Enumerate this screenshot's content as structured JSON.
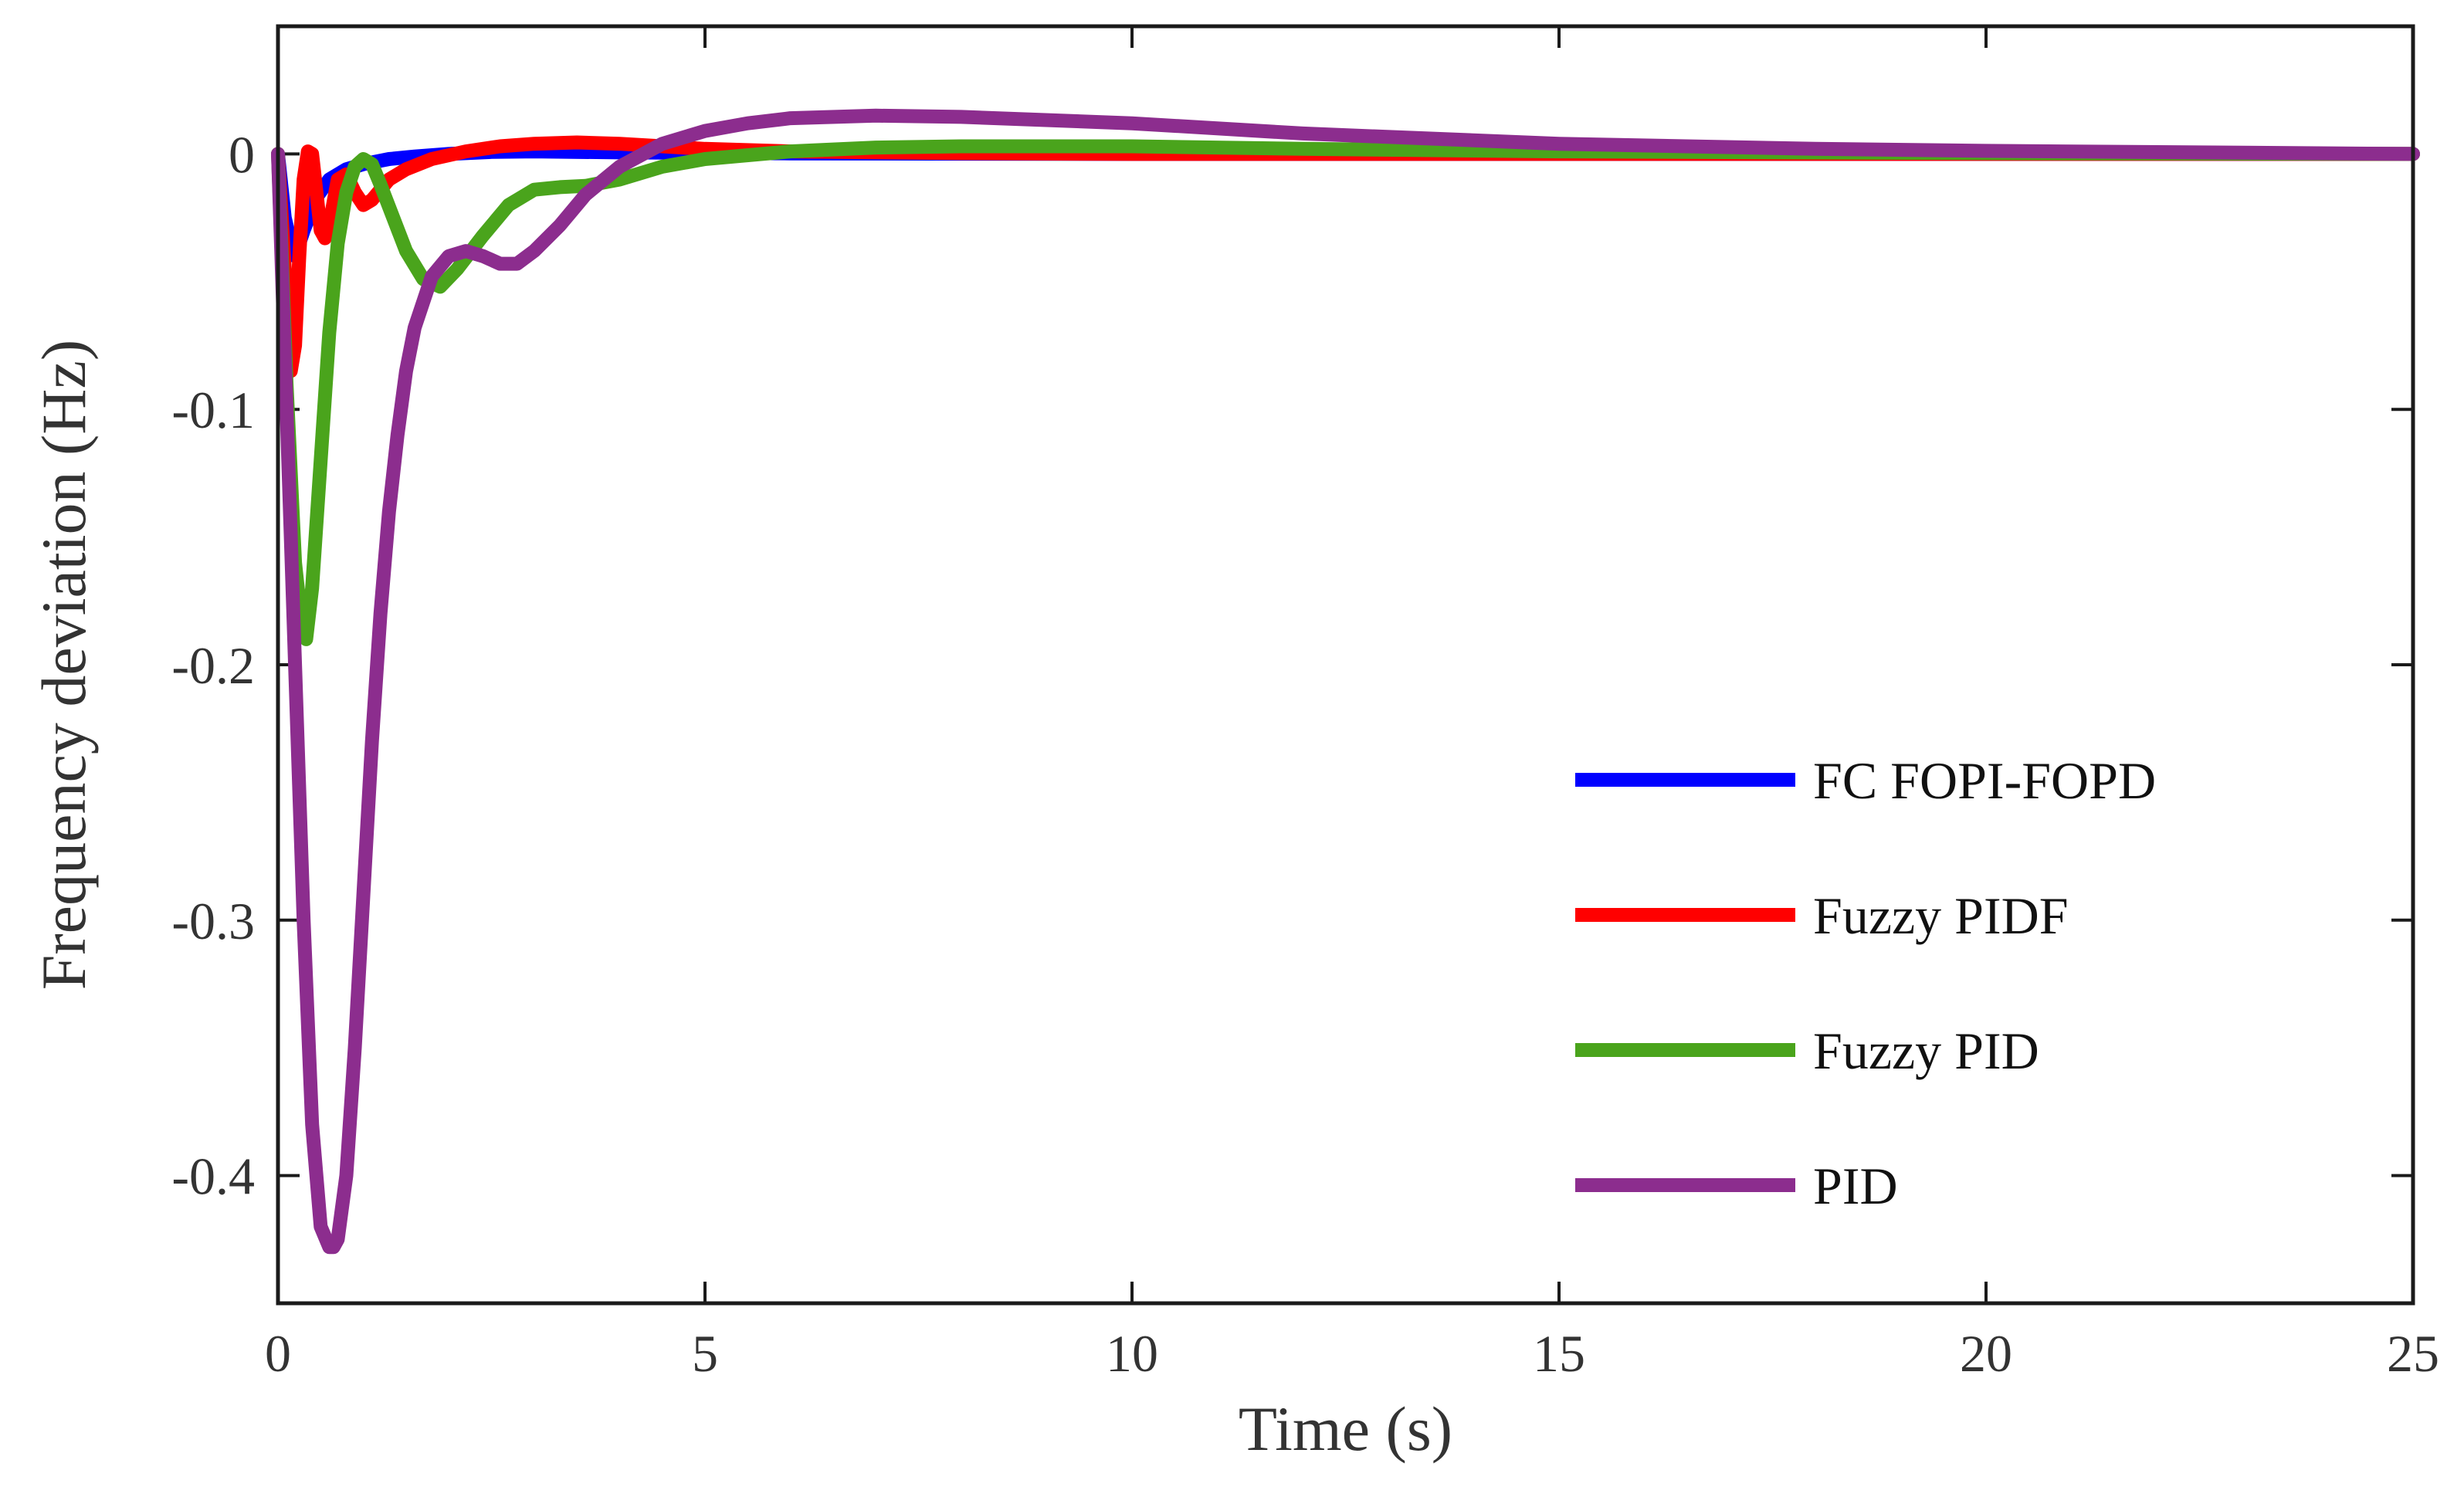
{
  "chart_data": {
    "type": "line",
    "title": "",
    "xlabel": "Time (s)",
    "ylabel": "Frequency deviation (Hz)",
    "xlim": [
      0,
      25
    ],
    "ylim": [
      -0.45,
      0.05
    ],
    "xticks": [
      0,
      5,
      10,
      15,
      20,
      25
    ],
    "xtick_labels": [
      "0",
      "5",
      "10",
      "15",
      "20",
      "25"
    ],
    "yticks": [
      0,
      -0.1,
      -0.2,
      -0.3,
      -0.4
    ],
    "ytick_labels": [
      "0",
      "-0.1",
      "-0.2",
      "-0.3",
      "-0.4"
    ],
    "grid": false,
    "legend_position": "bottom-right",
    "series": [
      {
        "name": "FC FOPI-FOPD",
        "color": "#0000ff",
        "x": [
          0,
          0.08,
          0.15,
          0.2,
          0.3,
          0.45,
          0.6,
          0.8,
          1.0,
          1.3,
          1.6,
          2.0,
          2.5,
          3,
          4,
          6,
          10,
          15,
          25
        ],
        "y": [
          0,
          -0.025,
          -0.035,
          -0.04,
          -0.03,
          -0.017,
          -0.01,
          -0.006,
          -0.004,
          -0.002,
          -0.001,
          0,
          0.0008,
          0.001,
          0.0006,
          0.0002,
          0,
          0,
          0
        ]
      },
      {
        "name": "Fuzzy PIDF",
        "color": "#ff0000",
        "x": [
          0,
          0.08,
          0.15,
          0.2,
          0.25,
          0.3,
          0.35,
          0.4,
          0.45,
          0.5,
          0.55,
          0.6,
          0.7,
          0.8,
          0.9,
          1.0,
          1.1,
          1.2,
          1.3,
          1.5,
          1.8,
          2.2,
          2.6,
          3.0,
          3.5,
          4.0,
          4.5,
          5,
          6,
          8,
          10,
          15,
          25
        ],
        "y": [
          0,
          -0.045,
          -0.085,
          -0.075,
          -0.04,
          -0.01,
          0.001,
          0,
          -0.015,
          -0.03,
          -0.033,
          -0.028,
          -0.01,
          -0.008,
          -0.015,
          -0.02,
          -0.018,
          -0.014,
          -0.01,
          -0.006,
          -0.002,
          0.001,
          0.003,
          0.004,
          0.0045,
          0.004,
          0.003,
          0.002,
          0.001,
          0.0003,
          0,
          0,
          0
        ]
      },
      {
        "name": "Fuzzy PID",
        "color": "#4aa41c",
        "x": [
          0,
          0.1,
          0.2,
          0.28,
          0.33,
          0.4,
          0.5,
          0.6,
          0.7,
          0.8,
          0.9,
          1.0,
          1.1,
          1.2,
          1.35,
          1.5,
          1.7,
          1.9,
          2.1,
          2.4,
          2.7,
          3.0,
          3.3,
          3.6,
          4.0,
          4.5,
          5.0,
          6.0,
          7.0,
          8.0,
          10,
          12,
          15,
          20,
          25
        ],
        "y": [
          0,
          -0.09,
          -0.16,
          -0.185,
          -0.19,
          -0.17,
          -0.12,
          -0.07,
          -0.035,
          -0.015,
          -0.005,
          -0.002,
          -0.004,
          -0.012,
          -0.025,
          -0.038,
          -0.049,
          -0.052,
          -0.045,
          -0.032,
          -0.02,
          -0.014,
          -0.013,
          -0.0125,
          -0.01,
          -0.005,
          -0.002,
          0.001,
          0.0025,
          0.003,
          0.003,
          0.002,
          0.001,
          0.0003,
          0
        ]
      },
      {
        "name": "PID",
        "color": "#8c2d8e",
        "x": [
          0,
          0.1,
          0.2,
          0.3,
          0.4,
          0.5,
          0.6,
          0.65,
          0.7,
          0.8,
          0.9,
          1.0,
          1.1,
          1.2,
          1.3,
          1.4,
          1.5,
          1.6,
          1.8,
          2.0,
          2.2,
          2.4,
          2.6,
          2.8,
          3.0,
          3.3,
          3.6,
          4.0,
          4.5,
          5.0,
          5.5,
          6.0,
          7.0,
          8.0,
          10,
          12,
          15,
          18,
          20,
          25
        ],
        "y": [
          0,
          -0.1,
          -0.2,
          -0.3,
          -0.38,
          -0.42,
          -0.428,
          -0.428,
          -0.425,
          -0.4,
          -0.35,
          -0.29,
          -0.23,
          -0.18,
          -0.14,
          -0.11,
          -0.085,
          -0.068,
          -0.048,
          -0.04,
          -0.038,
          -0.04,
          -0.043,
          -0.043,
          -0.038,
          -0.028,
          -0.016,
          -0.005,
          0.004,
          0.009,
          0.012,
          0.014,
          0.015,
          0.0145,
          0.012,
          0.008,
          0.004,
          0.002,
          0.0012,
          0
        ]
      }
    ]
  }
}
